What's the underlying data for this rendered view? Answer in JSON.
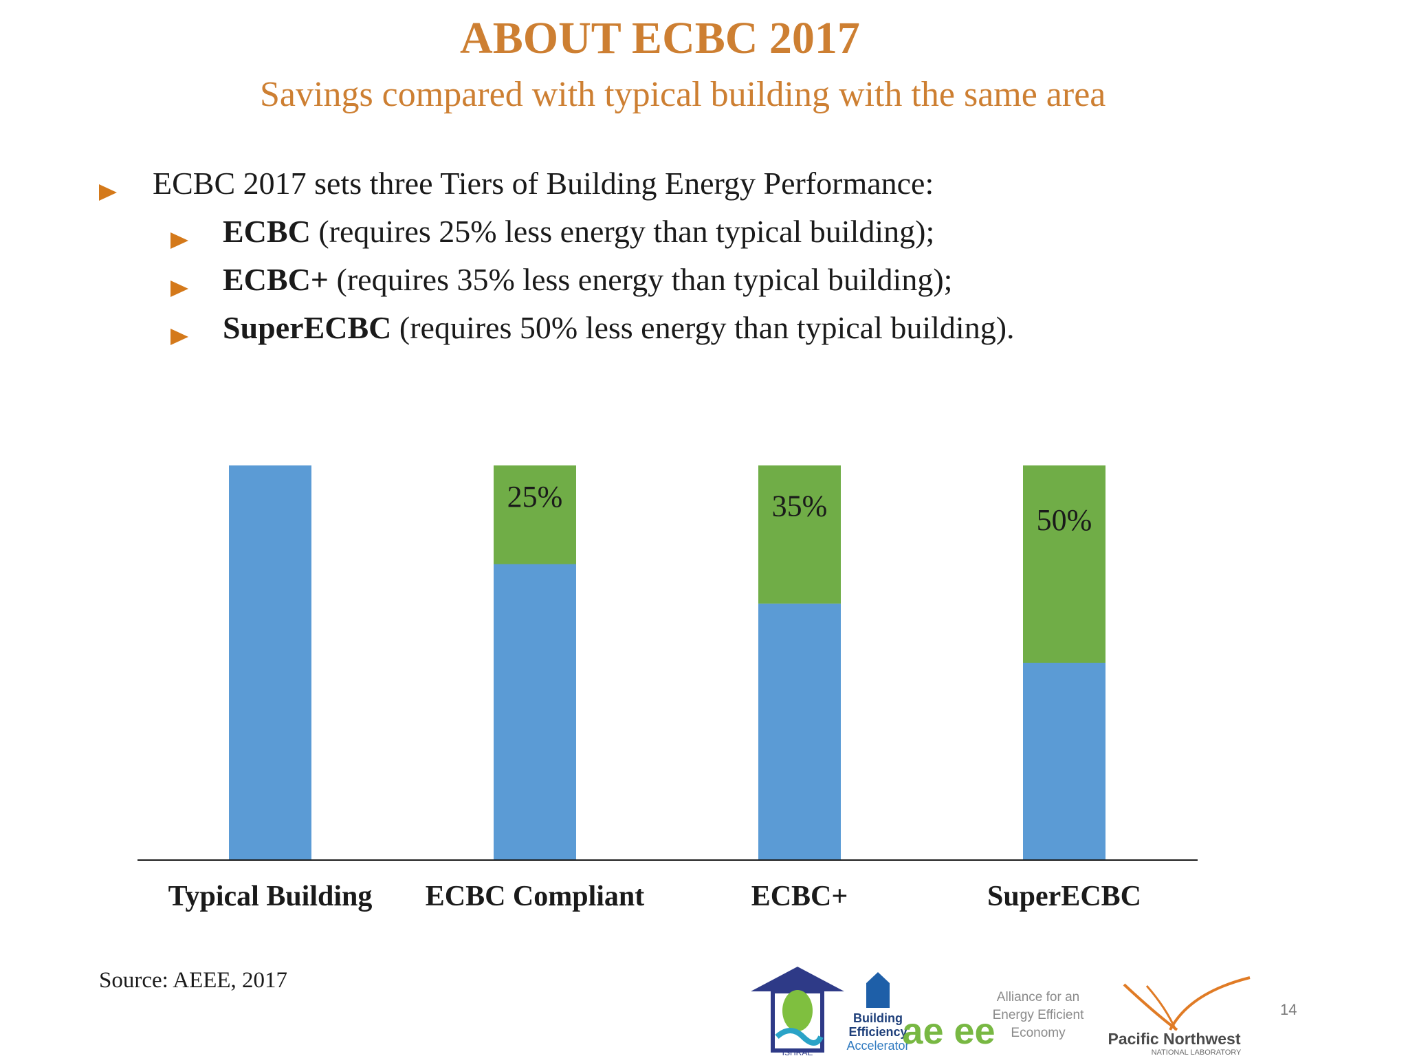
{
  "slide": {
    "title": "ABOUT ECBC 2017",
    "subtitle": "Savings compared with typical building with the same area",
    "page_number": "14",
    "source": "Source: AEEE, 2017",
    "accent_color": "#cd7f32",
    "bullet_color": "#d4791a"
  },
  "bullets": {
    "main": "ECBC 2017 sets three Tiers of Building Energy Performance:",
    "sub": [
      {
        "bold": "ECBC",
        "rest": " (requires 25% less energy than typical building);"
      },
      {
        "bold": "ECBC+",
        "rest": " (requires 35% less energy than typical building);"
      },
      {
        "bold": "SuperECBC",
        "rest": " (requires 50% less energy than typical building)."
      }
    ]
  },
  "chart_data": {
    "type": "bar",
    "stacked": true,
    "categories": [
      "Typical Building",
      "ECBC Compliant",
      "ECBC+",
      "SuperECBC"
    ],
    "series": [
      {
        "values": [
          100,
          75,
          65,
          50
        ],
        "color": "#5b9bd5"
      },
      {
        "values": [
          0,
          25,
          35,
          50
        ],
        "color": "#70ad47"
      }
    ],
    "data_labels": [
      "",
      "25%",
      "35%",
      "50%"
    ],
    "ylim": [
      0,
      100
    ],
    "grid": false
  },
  "logos": {
    "items": [
      {
        "name": "ISHRAE house logo",
        "text": "ISHRAE"
      },
      {
        "name": "Building Efficiency Accelerator logo",
        "lines": [
          "Building",
          "Efficiency",
          "Accelerator"
        ]
      },
      {
        "name": "AEEE logo",
        "mark": "ae ee",
        "lines": [
          "Alliance for an",
          "Energy Efficient",
          "Economy"
        ]
      },
      {
        "name": "PNNL logo",
        "lines": [
          "Pacific Northwest",
          "NATIONAL LABORATORY"
        ]
      }
    ]
  }
}
